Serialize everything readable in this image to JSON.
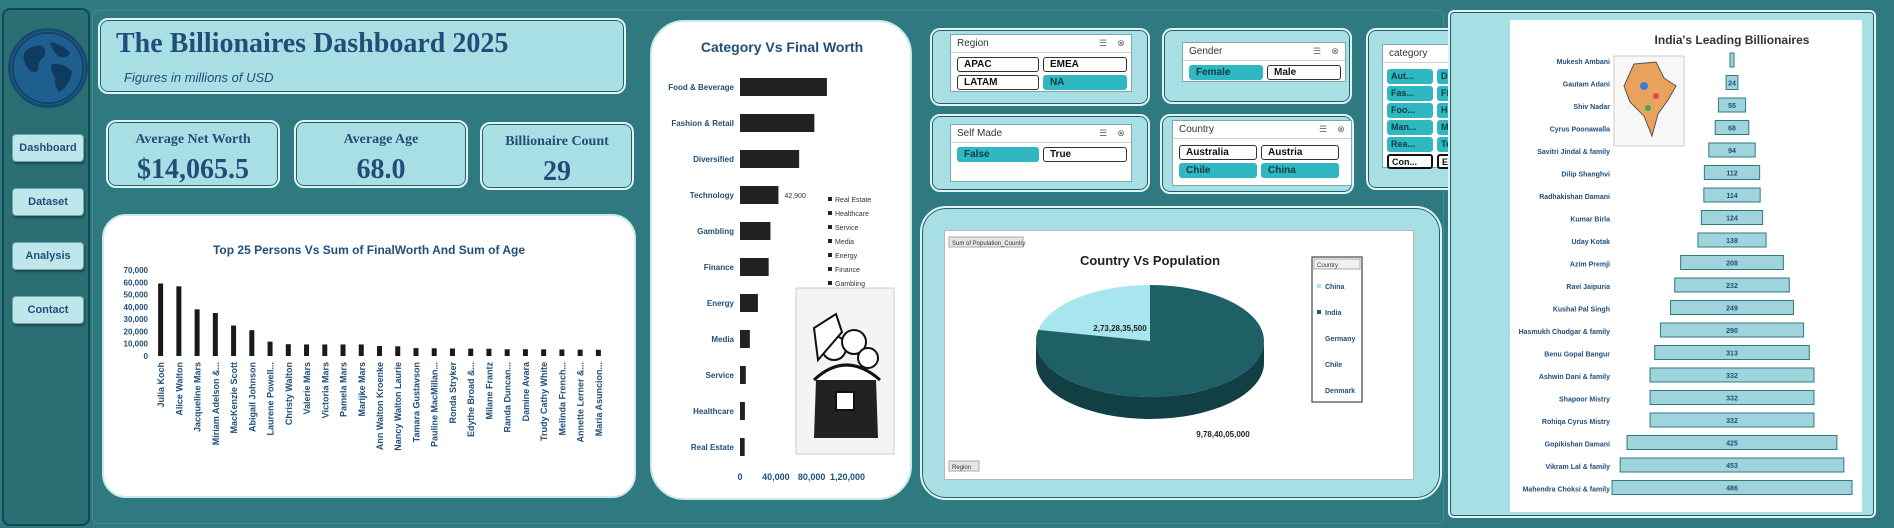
{
  "nav": {
    "items": [
      "Dashboard",
      "Dataset",
      "Analysis",
      "Contact"
    ]
  },
  "header": {
    "title": "The Billionaires Dashboard 2025",
    "subtitle": "Figures in millions of USD"
  },
  "kpis": [
    {
      "label": "Average Net Worth",
      "value": "$14,065.5"
    },
    {
      "label": "Average Age",
      "value": "68.0"
    },
    {
      "label": "Billionaire Count",
      "value": "29"
    }
  ],
  "slicers": {
    "region": {
      "title": "Region",
      "items": [
        {
          "label": "APAC",
          "selected": false
        },
        {
          "label": "EMEA",
          "selected": false
        },
        {
          "label": "LATAM",
          "selected": false
        },
        {
          "label": "NA",
          "selected": true
        }
      ]
    },
    "self_made": {
      "title": "Self Made",
      "items": [
        {
          "label": "False",
          "selected": true
        },
        {
          "label": "True",
          "selected": false
        }
      ]
    },
    "gender": {
      "title": "Gender",
      "items": [
        {
          "label": "Female",
          "selected": true
        },
        {
          "label": "Male",
          "selected": false
        }
      ]
    },
    "country": {
      "title": "Country",
      "items": [
        {
          "label": "Australia",
          "selected": false
        },
        {
          "label": "Austria",
          "selected": false
        },
        {
          "label": "Chile",
          "selected": true
        },
        {
          "label": "China",
          "selected": true
        }
      ]
    },
    "category": {
      "title": "category",
      "items": [
        {
          "label": "Aut...",
          "selected": true
        },
        {
          "label": "Div...",
          "selected": true
        },
        {
          "label": "Fas...",
          "selected": true
        },
        {
          "label": "Fina...",
          "selected": true
        },
        {
          "label": "Foo...",
          "selected": true
        },
        {
          "label": "Hea...",
          "selected": true
        },
        {
          "label": "Man...",
          "selected": true
        },
        {
          "label": "Met...",
          "selected": true
        },
        {
          "label": "Rea...",
          "selected": true
        },
        {
          "label": "Tec...",
          "selected": true
        },
        {
          "label": "Con...",
          "selected": false
        },
        {
          "label": "Ene...",
          "selected": false
        }
      ]
    }
  },
  "chart_data": [
    {
      "type": "bar",
      "title": "Top 25 Persons Vs Sum of FinalWorth And Sum of Age",
      "categories": [
        "Julia Koch",
        "Alice Walton",
        "Jacqueline Mars",
        "Miriam Adelson &...",
        "MacKenzie Scott",
        "Abigail Johnson",
        "Laurene Powell...",
        "Christy Walton",
        "Valerie Mars",
        "Victoria Mars",
        "Pamela Mars",
        "Marijke Mars",
        "Ann Walton Kroenke",
        "Nancy Walton Laurie",
        "Tamara Gustavson",
        "Pauline MacMillan...",
        "Ronda Stryker",
        "Edythe Broad &...",
        "Milane Frantz",
        "Randa Duncan...",
        "Damine Avara",
        "Trudy Cathy White",
        "Melinda French...",
        "Annette Lerner &...",
        "Maria Asuncion..."
      ],
      "series": [
        {
          "values": [
            59000,
            56700,
            38000,
            35000,
            24800,
            21000,
            11700,
            9600,
            9400,
            9400,
            9400,
            9400,
            8100,
            7900,
            6400,
            6300,
            6100,
            6000,
            5900,
            5500,
            5500,
            5400,
            5300,
            5200,
            5100
          ]
        }
      ],
      "ylim": [
        0,
        70000
      ],
      "yticks": [
        "0",
        "10,000",
        "20,000",
        "30,000",
        "40,000",
        "50,000",
        "60,000",
        "70,000"
      ]
    },
    {
      "type": "bar",
      "orientation": "horizontal",
      "title": "Category Vs Final Worth",
      "categories": [
        "Food & Beverage",
        "Fashion & Retail",
        "Diversified",
        "Technology",
        "Gambling",
        "Finance",
        "Energy",
        "Media",
        "Service",
        "Healthcare",
        "Real Estate"
      ],
      "values": [
        97000,
        83000,
        66000,
        42900,
        34000,
        32000,
        20000,
        11000,
        6500,
        5500,
        5200
      ],
      "data_labels": {
        "Technology": "42,900"
      },
      "xticks": [
        "0",
        "40,000",
        "80,000",
        "1,20,000"
      ],
      "xlim": [
        0,
        120000
      ],
      "legend": [
        "Real Estate",
        "Healthcare",
        "Service",
        "Media",
        "Energy",
        "Finance",
        "Gambling"
      ],
      "legend_position": "right"
    },
    {
      "type": "pie",
      "title": "Country Vs Population",
      "field_button": "Sum of Population_Country",
      "filter_button": "Region",
      "categories": [
        "China",
        "India"
      ],
      "values": [
        273283500,
        978405000
      ],
      "labels": [
        "2,73,28,35,500",
        "9,78,40,05,000"
      ],
      "legend_title": "Country",
      "legend": [
        "China",
        "India",
        "Germany",
        "Chile",
        "Denmark"
      ],
      "legend_position": "right",
      "colors": [
        "#a8e6ef",
        "#1f5f66"
      ]
    },
    {
      "type": "bar",
      "orientation": "horizontal",
      "shape": "funnel",
      "title": "India's Leading Billionaires",
      "categories": [
        "Mukesh Ambani",
        "Gautam Adani",
        "Shiv Nadar",
        "Cyrus Poonawalla",
        "Savitri Jindal & family",
        "Dilip Shanghvi",
        "Radhakishan Damani",
        "Kumar Birla",
        "Uday Kotak",
        "Azim Premji",
        "Ravi Jaipuria",
        "Kushal Pal Singh",
        "Hasmukh Chudgar & family",
        "Benu Gopal Bangur",
        "Ashwin Dani & family",
        "Shapoor Mistry",
        "Rohiqa Cyrus Mistry",
        "Gopikishan Damani",
        "Vikram Lal & family",
        "Mahendra Choksi & family"
      ],
      "values": [
        8,
        24,
        55,
        68,
        94,
        112,
        114,
        124,
        138,
        208,
        232,
        249,
        290,
        313,
        332,
        332,
        332,
        425,
        453,
        486
      ],
      "labels": [
        "",
        "24",
        "55",
        "68",
        "94",
        "112",
        "114",
        "124",
        "138",
        "208",
        "232",
        "249",
        "290",
        "313",
        "332",
        "332",
        "332",
        "425",
        "453",
        "486"
      ]
    }
  ]
}
